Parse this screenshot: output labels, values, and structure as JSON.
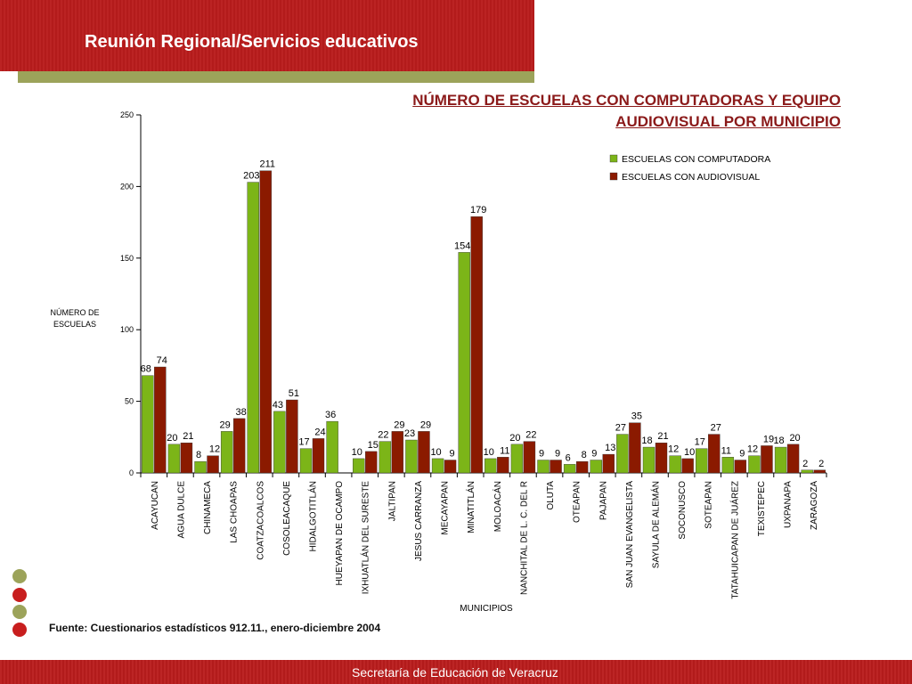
{
  "slide": {
    "title": "Reunión Regional/Servicios educativos",
    "source": "Fuente: Cuestionarios estadísticos 912.11., enero-diciembre 2004",
    "footer": "Secretaría de Educación de Veracruz",
    "colors": {
      "brand_red": "#b91c1c",
      "olive": "#9ca35a"
    }
  },
  "chart_data": {
    "type": "bar",
    "title_lines": [
      "NÚMERO DE ESCUELAS CON COMPUTADORAS Y EQUIPO",
      "AUDIOVISUAL POR MUNICIPIO"
    ],
    "xlabel": "MUNICIPIOS",
    "ylabel_lines": [
      "NÚMERO DE",
      "ESCUELAS"
    ],
    "ylim": [
      0,
      250
    ],
    "yticks": [
      0,
      50,
      100,
      150,
      200,
      250
    ],
    "legend_position": "top-right",
    "categories": [
      "ACAYUCAN",
      "AGUA DULCE",
      "CHINAMECA",
      "LAS CHOAPAS",
      "COATZACOALCOS",
      "COSOLEACAQUE",
      "HIDALGOTITLÁN",
      "HUEYAPAN DE OCAMPO",
      "IXHUATLÁN DEL SURESTE",
      "JALTIPAN",
      "JESUS CARRANZA",
      "MECAYAPAN",
      "MINATITLÁN",
      "MOLOACÁN",
      "NANCHITAL DE L. C. DEL R",
      "OLUTA",
      "OTEAPAN",
      "PAJAPAN",
      "SAN JUAN EVANGELISTA",
      "SAYULA DE ALEMÁN",
      "SOCONUSCO",
      "SOTEAPAN",
      "TATAHUICAPAN DE JUÁREZ",
      "TEXISTEPEC",
      "UXPANAPA",
      "ZARAGOZA"
    ],
    "series": [
      {
        "name": "ESCUELAS CON COMPUTADORA",
        "color": "#7cb518",
        "values": [
          68,
          20,
          8,
          29,
          203,
          43,
          17,
          36,
          10,
          22,
          23,
          10,
          154,
          10,
          20,
          9,
          6,
          9,
          27,
          18,
          12,
          17,
          11,
          12,
          18,
          2
        ]
      },
      {
        "name": "ESCUELAS CON AUDIOVISUAL",
        "color": "#8b1a00",
        "values": [
          74,
          21,
          12,
          38,
          211,
          51,
          24,
          null,
          15,
          29,
          29,
          9,
          179,
          11,
          22,
          9,
          8,
          13,
          35,
          21,
          10,
          27,
          9,
          19,
          20,
          2
        ]
      }
    ]
  }
}
